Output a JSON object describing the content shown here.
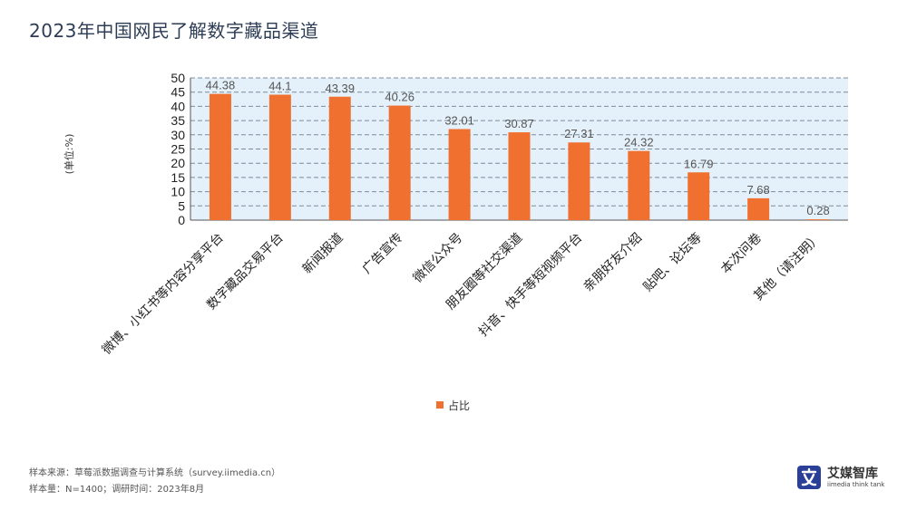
{
  "title": "2023年中国网民了解数字藏品渠道",
  "chart_data": {
    "type": "bar",
    "ylabel": "(单位:%)",
    "ylim": [
      0,
      50
    ],
    "yticks": [
      0,
      5,
      10,
      15,
      20,
      25,
      30,
      35,
      40,
      45,
      50
    ],
    "grid": "horizontal dashed",
    "legend_position": "bottom-center",
    "categories": [
      "微博、小红书等内容分享平台",
      "数字藏品交易平台",
      "新闻报道",
      "广告宣传",
      "微信公众号",
      "朋友圈等社交渠道",
      "抖音、快手等短视频平台",
      "亲朋好友介绍",
      "贴吧、论坛等",
      "本次问卷",
      "其他（请注明）"
    ],
    "series": [
      {
        "name": "占比",
        "values": [
          44.38,
          44.1,
          43.39,
          40.26,
          32.01,
          30.87,
          27.31,
          24.32,
          16.79,
          7.68,
          0.28
        ],
        "labels": [
          "44.38",
          "44.1",
          "43.39",
          "40.26",
          "32.01",
          "30.87",
          "27.31",
          "24.32",
          "16.79",
          "7.68",
          "0.28"
        ]
      }
    ]
  },
  "colors": {
    "bar": "#f07030",
    "plot_background": "#e5f1fa",
    "grid": "#7d8c9c",
    "title": "#2d3d55",
    "logo": "#2a3f98"
  },
  "footer": {
    "source": "样本来源：草莓派数据调查与计算系统（survey.iimedia.cn）",
    "sample": "样本量：N=1400；调研时间：2023年8月"
  },
  "logo": {
    "icon": "iimedia-logo-icon",
    "name": "艾媒智库",
    "sub": "iimedia think tank"
  }
}
